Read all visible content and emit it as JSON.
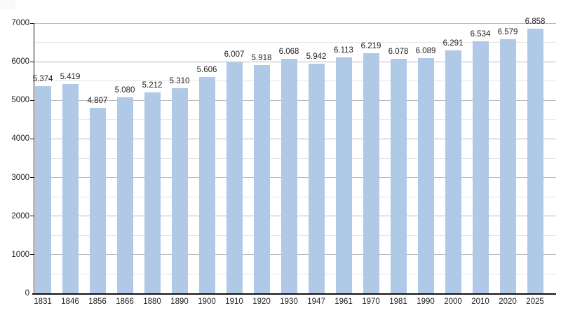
{
  "chart_data": {
    "type": "bar",
    "title": "",
    "xlabel": "",
    "ylabel": "",
    "categories": [
      "1831",
      "1846",
      "1856",
      "1866",
      "1880",
      "1890",
      "1900",
      "1910",
      "1920",
      "1930",
      "1947",
      "1961",
      "1970",
      "1981",
      "1990",
      "2000",
      "2010",
      "2020",
      "2025"
    ],
    "values": [
      5374,
      5419,
      4807,
      5080,
      5212,
      5310,
      5606,
      6007,
      5918,
      6068,
      5942,
      6113,
      6219,
      6078,
      6089,
      6291,
      6534,
      6579,
      6858
    ],
    "bar_labels": [
      "5.374",
      "5.419",
      "4.807",
      "5.080",
      "5.212",
      "5.310",
      "5.606",
      "6.007",
      "5.918",
      "6.068",
      "5.942",
      "6.113",
      "6.219",
      "6.078",
      "6.089",
      "6.291",
      "6.534",
      "6.579",
      "6.858"
    ],
    "ylim": [
      0,
      7000
    ],
    "yticks": {
      "values": [
        0,
        1000,
        2000,
        3000,
        4000,
        5000,
        6000,
        7000
      ],
      "labels": [
        "0",
        "1000",
        "2000",
        "3000",
        "4000",
        "5000",
        "6000",
        "7000"
      ]
    },
    "minor_grid_step": 500,
    "grid": true,
    "legend_position": "none",
    "colors": {
      "bar": "#afc9e6",
      "major_grid": "#b8b8b8",
      "minor_grid": "#e4e4e4",
      "axis": "#111111",
      "text": "#202122"
    }
  }
}
